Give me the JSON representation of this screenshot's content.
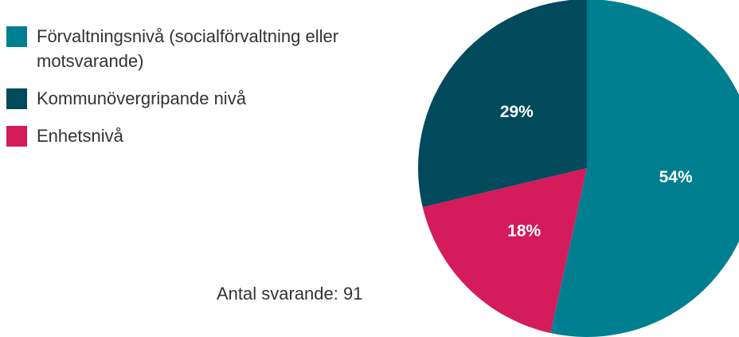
{
  "chart_data": {
    "type": "pie",
    "categories": [
      "Förvaltningsnivå (socialförvaltning eller motsvarande)",
      "Enhetsnivå",
      "Kommunövergripande nivå"
    ],
    "values": [
      54,
      18,
      29
    ],
    "value_labels": [
      "54%",
      "18%",
      "29%"
    ],
    "colors": [
      "#007f91",
      "#d41b5c",
      "#004a5c"
    ],
    "legend_order": [
      0,
      2,
      1
    ],
    "note": "Antal svarande: 91"
  }
}
